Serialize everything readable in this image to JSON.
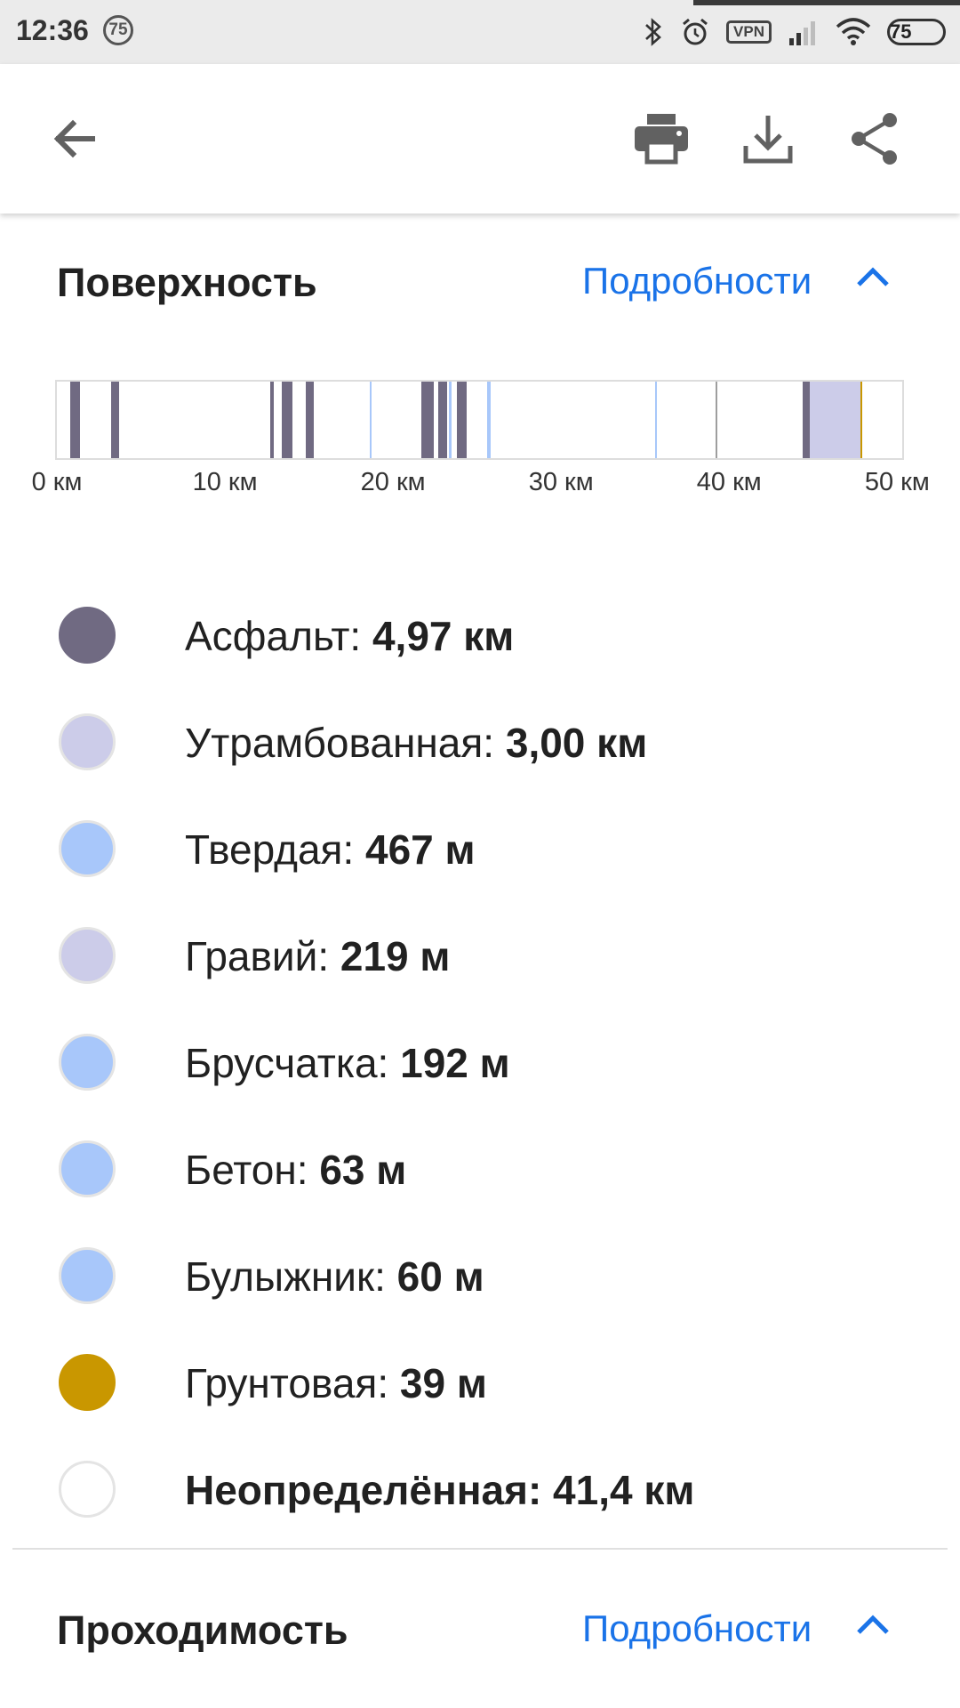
{
  "status_bar": {
    "time": "12:36",
    "notification_count": "75",
    "vpn_label": "VPN",
    "battery": "75",
    "icons": [
      "bluetooth-icon",
      "alarm-icon",
      "vpn-icon",
      "signal-icon",
      "wifi-icon",
      "battery-icon"
    ]
  },
  "toolbar": {
    "icons": [
      "back-arrow-icon",
      "print-icon",
      "download-icon",
      "share-icon"
    ]
  },
  "surface_section": {
    "title": "Поверхность",
    "details_label": "Подробности",
    "expanded": true,
    "axis_ticks": [
      "0 км",
      "10 км",
      "20 км",
      "30 км",
      "40 км",
      "50 км"
    ],
    "axis_max_km": 50.3,
    "segments": [
      {
        "start": 0.8,
        "end": 1.4,
        "color": "#706a82"
      },
      {
        "start": 3.2,
        "end": 3.7,
        "color": "#706a82"
      },
      {
        "start": 12.7,
        "end": 12.9,
        "color": "#706a82"
      },
      {
        "start": 13.4,
        "end": 14.0,
        "color": "#706a82"
      },
      {
        "start": 14.8,
        "end": 15.3,
        "color": "#706a82"
      },
      {
        "start": 18.6,
        "end": 18.7,
        "color": "#a8c7fa"
      },
      {
        "start": 21.7,
        "end": 22.4,
        "color": "#706a82"
      },
      {
        "start": 22.7,
        "end": 23.2,
        "color": "#706a82"
      },
      {
        "start": 23.3,
        "end": 23.5,
        "color": "#a8c7fa"
      },
      {
        "start": 23.8,
        "end": 24.4,
        "color": "#706a82"
      },
      {
        "start": 25.6,
        "end": 25.8,
        "color": "#a8c7fa"
      },
      {
        "start": 35.6,
        "end": 35.7,
        "color": "#a8c7fa"
      },
      {
        "start": 39.2,
        "end": 39.3,
        "color": "#9e9e9e"
      },
      {
        "start": 44.4,
        "end": 44.8,
        "color": "#706a82"
      },
      {
        "start": 44.8,
        "end": 47.8,
        "color": "#cccce9"
      },
      {
        "start": 47.8,
        "end": 47.9,
        "color": "#c99700"
      }
    ],
    "legend": [
      {
        "label": "Асфальт:",
        "value": "4,97 км",
        "color": "#706a82",
        "bold_label": false
      },
      {
        "label": "Утрамбованная:",
        "value": "3,00 км",
        "color": "#cccce9",
        "bold_label": false
      },
      {
        "label": "Твердая:",
        "value": "467 м",
        "color": "#a8c7fa",
        "bold_label": false
      },
      {
        "label": "Гравий:",
        "value": "219 м",
        "color": "#cccce9",
        "bold_label": false
      },
      {
        "label": "Брусчатка:",
        "value": "192 м",
        "color": "#a8c7fa",
        "bold_label": false
      },
      {
        "label": "Бетон:",
        "value": "63 м",
        "color": "#a8c7fa",
        "bold_label": false
      },
      {
        "label": "Булыжник:",
        "value": "60 м",
        "color": "#a8c7fa",
        "bold_label": false
      },
      {
        "label": "Грунтовая:",
        "value": "39 м",
        "color": "#c99700",
        "bold_label": false
      },
      {
        "label": "Неопределённая:",
        "value": "41,4 км",
        "color": "#ffffff",
        "bold_label": true
      }
    ]
  },
  "passability_section": {
    "title": "Проходимость",
    "details_label": "Подробности",
    "expanded": true
  },
  "colors": {
    "accent": "#1a73e8",
    "asphalt": "#706a82",
    "compacted": "#cccce9",
    "paved": "#a8c7fa",
    "dirt": "#c99700",
    "unknown": "#ffffff"
  }
}
